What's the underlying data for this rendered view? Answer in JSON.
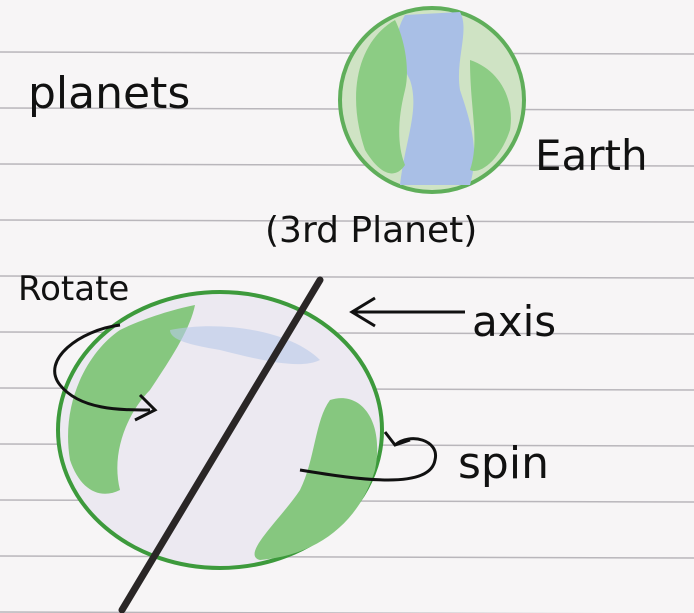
{
  "labels": {
    "planets": "planets",
    "earth": "Earth",
    "third_planet": "(3rd Planet)",
    "rotate": "Rotate",
    "axis": "axis",
    "spin": "spin"
  }
}
